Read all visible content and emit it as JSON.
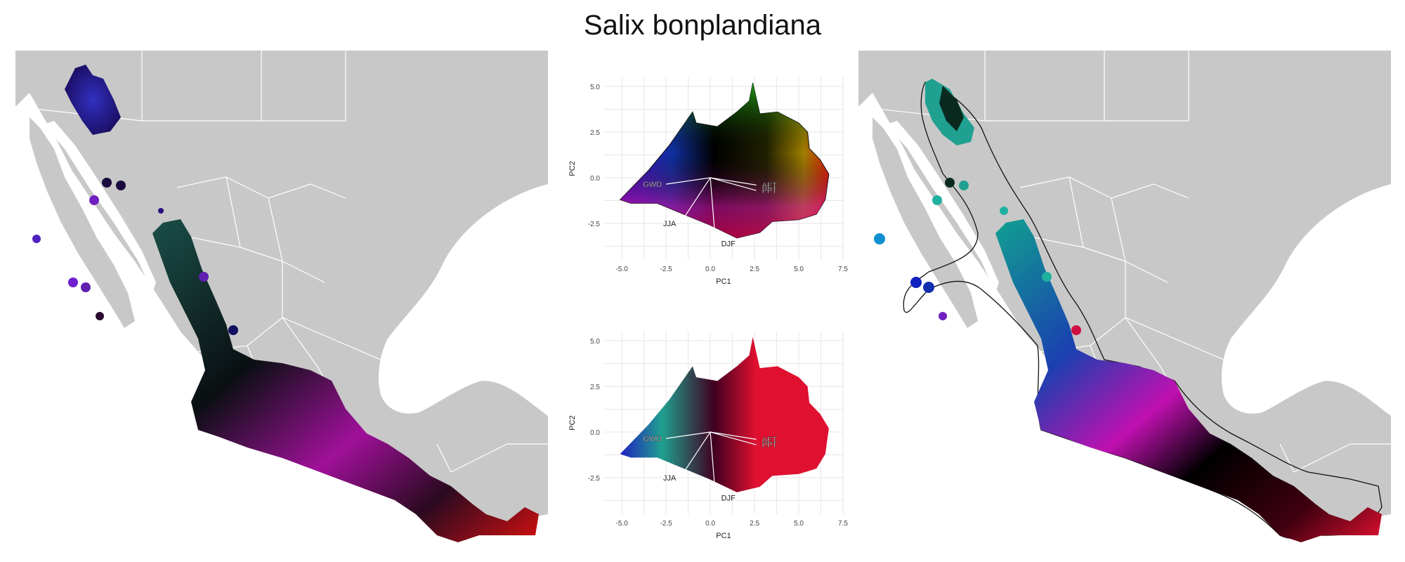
{
  "title": "Salix bonplandiana",
  "colors": {
    "land": "#c8c8c8",
    "borders": "#ffffff",
    "background": "#ffffff",
    "grid": "#e6e6e6",
    "text": "#333333"
  },
  "maps": [
    {
      "name": "left-map",
      "coloring": "PCA rainbow (RGB from PC1/PC2)"
    },
    {
      "name": "right-map",
      "coloring": "cluster colors with hull outline"
    }
  ],
  "chart_data": [
    {
      "type": "scatter",
      "name": "pca-top",
      "xlabel": "PC1",
      "ylabel": "PC2",
      "xlim": [
        -6,
        7.5
      ],
      "ylim": [
        -4.5,
        5.5
      ],
      "xticks": [
        "-5.0",
        "-2.5",
        "0.0",
        "2.5",
        "5.0",
        "7.5"
      ],
      "yticks": [
        "5.0",
        "2.5",
        "0.0",
        "-2.5"
      ],
      "grid": true,
      "arrows": [
        {
          "label": "GWD",
          "x": -2.5,
          "y": -0.35
        },
        {
          "label": "JJA",
          "x": -1.7,
          "y": -2.5
        },
        {
          "label": "DJF",
          "x": 0.3,
          "y": -3.6
        },
        {
          "label": "AET",
          "x": 2.6,
          "y": -0.4
        },
        {
          "label": "PPT",
          "x": 2.6,
          "y": -0.7
        }
      ]
    },
    {
      "type": "scatter",
      "name": "pca-bottom",
      "xlabel": "PC1",
      "ylabel": "PC2",
      "xlim": [
        -6,
        7.5
      ],
      "ylim": [
        -4.5,
        5.5
      ],
      "xticks": [
        "-5.0",
        "-2.5",
        "0.0",
        "2.5",
        "5.0",
        "7.5"
      ],
      "yticks": [
        "5.0",
        "2.5",
        "0.0",
        "-2.5"
      ],
      "grid": true,
      "arrows": [
        {
          "label": "GWD",
          "x": -2.5,
          "y": -0.35
        },
        {
          "label": "JJA",
          "x": -1.7,
          "y": -2.5
        },
        {
          "label": "DJF",
          "x": 0.3,
          "y": -3.6
        },
        {
          "label": "AET",
          "x": 2.6,
          "y": -0.4
        },
        {
          "label": "PPT",
          "x": 2.6,
          "y": -0.7
        }
      ]
    }
  ]
}
